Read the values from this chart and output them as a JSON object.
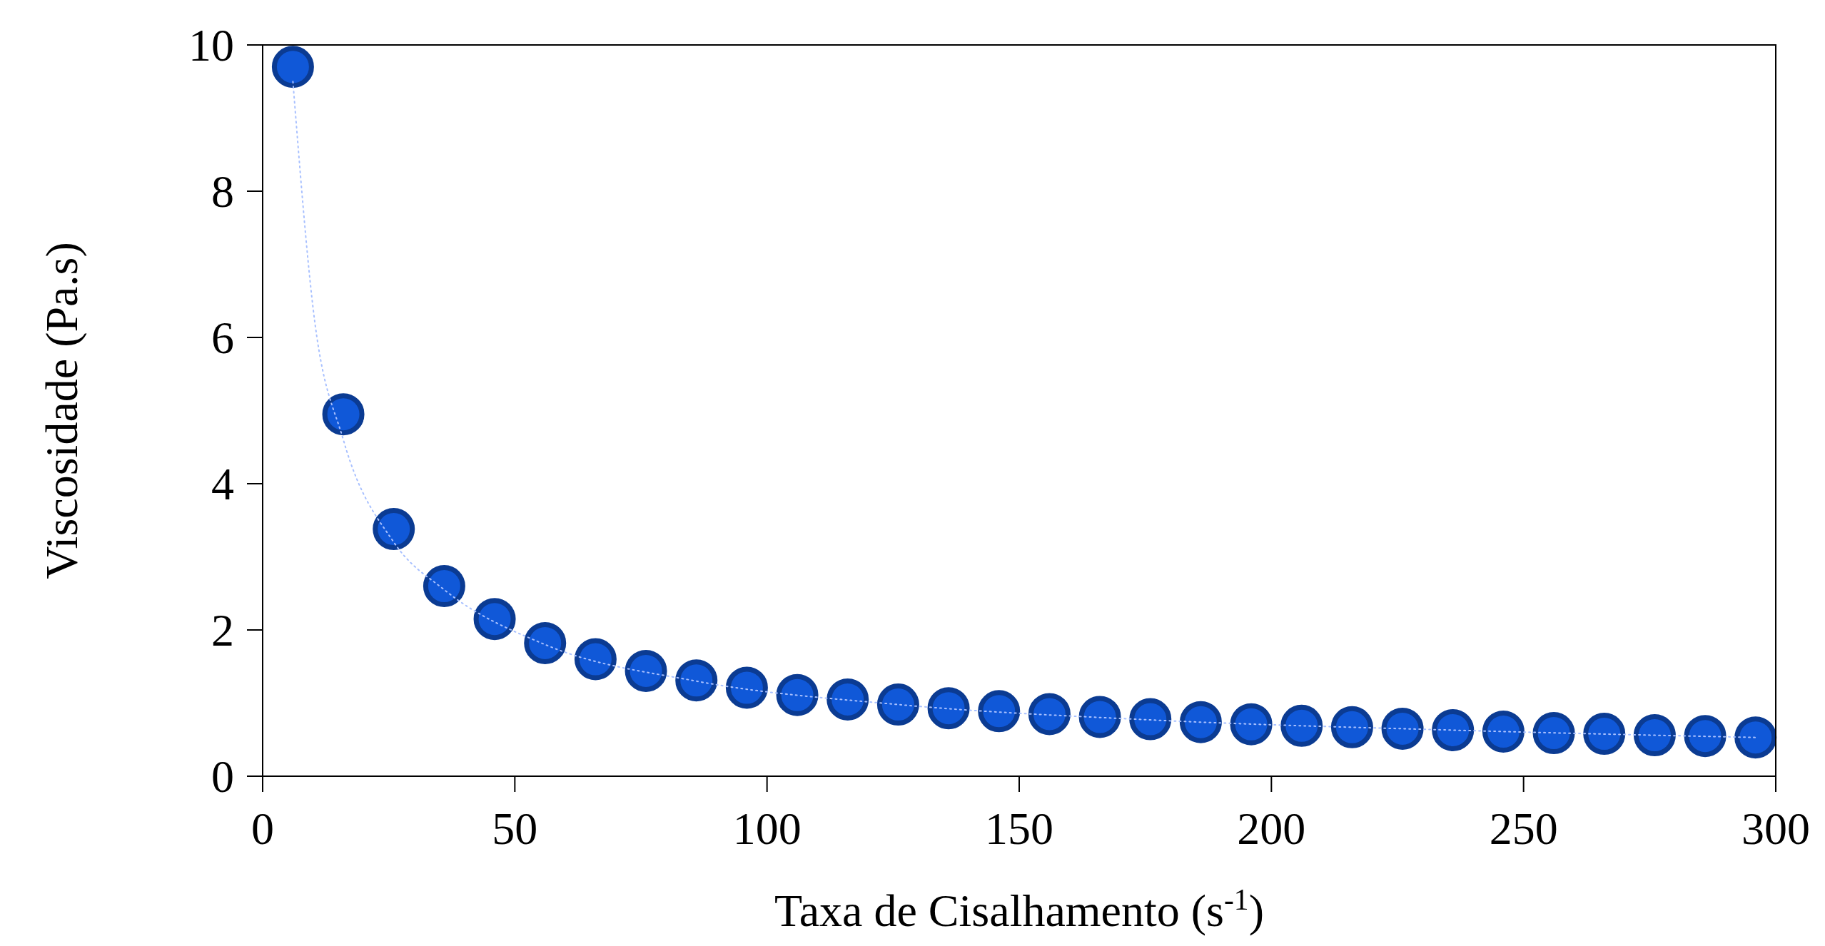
{
  "chart_data": {
    "type": "scatter",
    "xlabel": "Taxa de Cisalhamento (s$^{-1}$)",
    "ylabel": "Viscosidade (Pa.s)",
    "xlim": [
      0,
      300
    ],
    "xticks": [
      0,
      50,
      100,
      150,
      200,
      250,
      300
    ],
    "ylim": [
      0,
      10
    ],
    "yticks": [
      0,
      2,
      4,
      6,
      8,
      10
    ],
    "grid": false,
    "x": [
      6,
      16,
      26,
      36,
      46,
      56,
      66,
      76,
      86,
      96,
      106,
      116,
      126,
      136,
      146,
      156,
      166,
      176,
      186,
      196,
      206,
      216,
      226,
      236,
      246,
      256,
      266,
      276,
      286,
      296
    ],
    "series": [
      {
        "color": "#1058d8",
        "marker": "circle",
        "values": [
          9.7,
          4.95,
          3.38,
          2.6,
          2.15,
          1.82,
          1.6,
          1.44,
          1.31,
          1.21,
          1.11,
          1.05,
          0.98,
          0.93,
          0.89,
          0.85,
          0.81,
          0.78,
          0.74,
          0.71,
          0.69,
          0.67,
          0.65,
          0.63,
          0.61,
          0.59,
          0.58,
          0.56,
          0.55,
          0.53
        ]
      },
      {
        "type": "line",
        "color": "#a8c0ff",
        "line_style": "dotted",
        "marker": "none",
        "x": [
          6,
          10,
          16,
          26,
          36,
          56,
          86,
          126,
          176,
          236,
          296
        ],
        "values": [
          9.5,
          6.4,
          4.6,
          3.2,
          2.55,
          1.8,
          1.3,
          0.98,
          0.77,
          0.63,
          0.53
        ]
      }
    ]
  }
}
